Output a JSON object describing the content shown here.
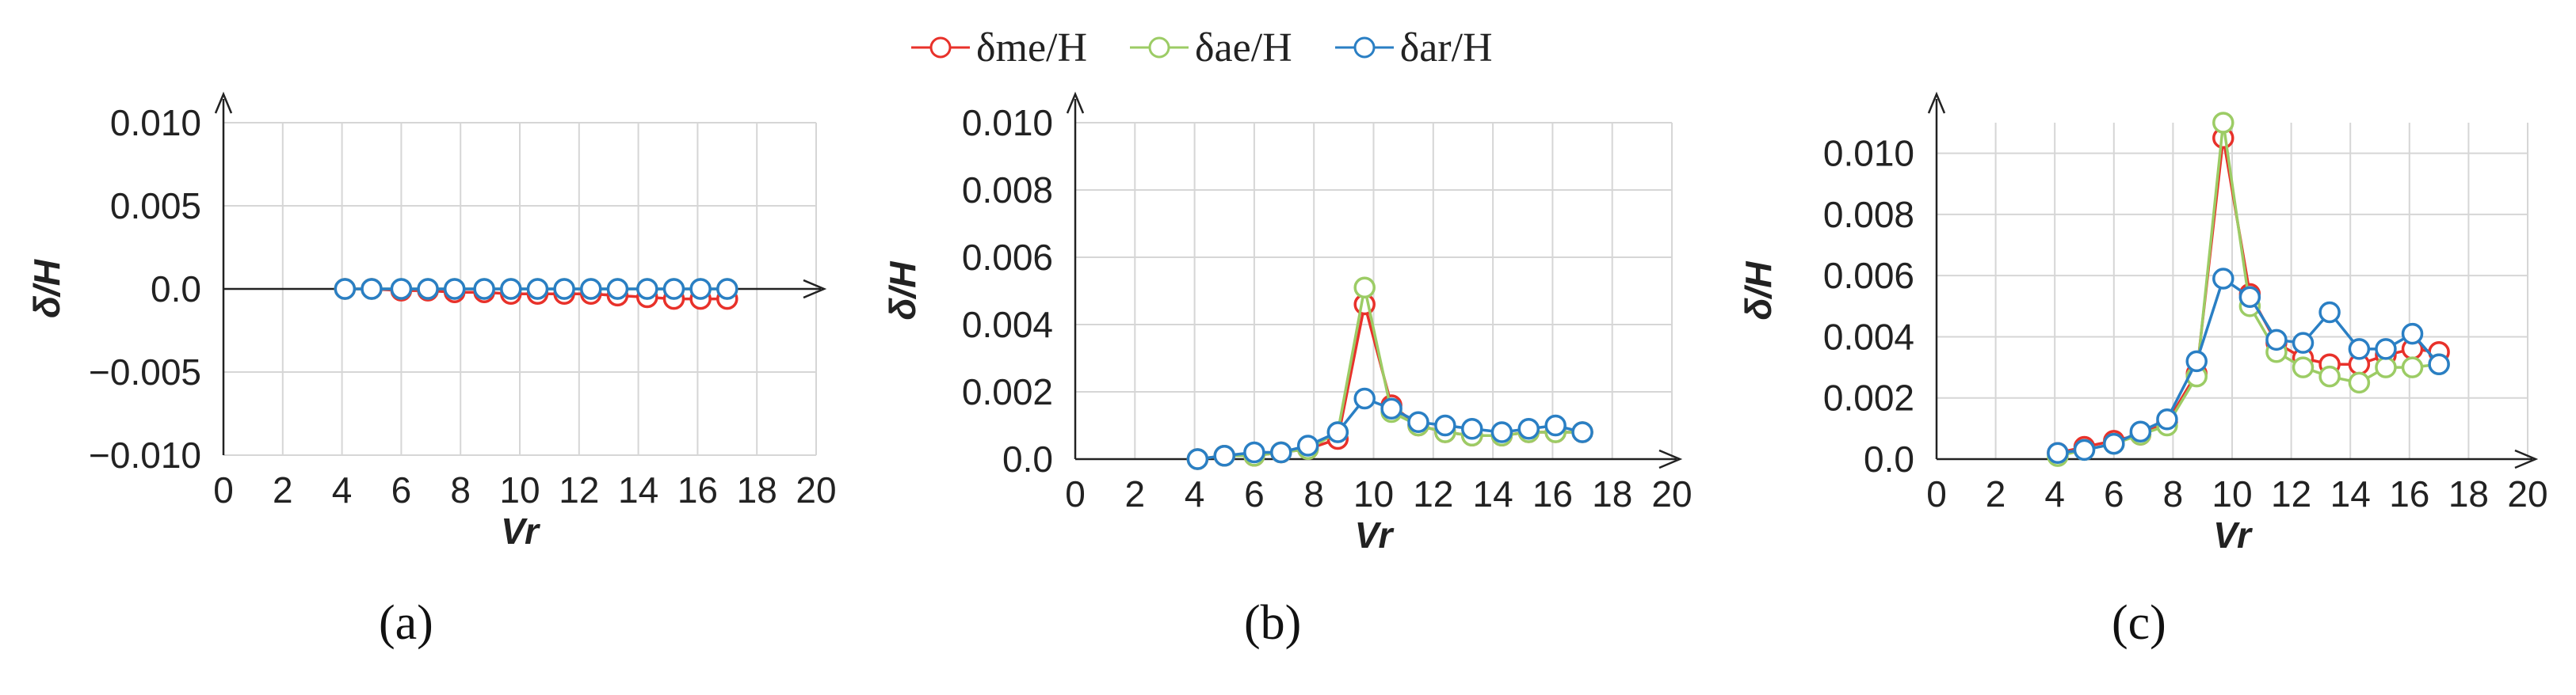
{
  "legend": [
    {
      "label": "δme/H",
      "color": "#e8312a"
    },
    {
      "label": "δae/H",
      "color": "#9ccc65"
    },
    {
      "label": "δar/H",
      "color": "#2a7fc4"
    }
  ],
  "chart_data": [
    {
      "type": "line",
      "panel_label": "(a)",
      "xlabel": "Vr",
      "ylabel": "δ/H",
      "xlim": [
        0,
        20
      ],
      "ylim": [
        -0.01,
        0.01
      ],
      "xticks": [
        0,
        2,
        4,
        6,
        8,
        10,
        12,
        14,
        16,
        18,
        20
      ],
      "xtick_labels": [
        "0",
        "2",
        "4",
        "6",
        "8",
        "10",
        "12",
        "14",
        "16",
        "18",
        "20"
      ],
      "yticks": [
        -0.01,
        -0.005,
        0.0,
        0.005,
        0.01
      ],
      "ytick_labels": [
        "−0.010",
        "−0.005",
        "0.0",
        "0.005",
        "0.010"
      ],
      "grid": true,
      "legend_position": "top",
      "x": [
        4.1,
        5.0,
        6.0,
        6.9,
        7.8,
        8.8,
        9.7,
        10.6,
        11.5,
        12.4,
        13.3,
        14.3,
        15.2,
        16.1,
        17.0
      ],
      "series": [
        {
          "name": "δme/H",
          "color": "#e8312a",
          "values": [
            0.0,
            0.0,
            -0.0001,
            -0.0001,
            -0.0002,
            -0.0002,
            -0.0003,
            -0.0003,
            -0.0003,
            -0.0003,
            -0.0004,
            -0.0005,
            -0.0006,
            -0.0006,
            -0.0006
          ]
        },
        {
          "name": "δae/H",
          "color": "#9ccc65",
          "values": [
            0.0,
            0.0,
            0.0,
            0.0,
            0.0,
            0.0,
            0.0,
            0.0,
            0.0,
            0.0,
            0.0,
            0.0,
            0.0,
            0.0,
            0.0
          ]
        },
        {
          "name": "δar/H",
          "color": "#2a7fc4",
          "values": [
            0.0,
            0.0,
            0.0,
            0.0,
            0.0,
            0.0,
            0.0,
            0.0,
            0.0,
            0.0,
            0.0,
            0.0,
            0.0,
            0.0,
            0.0
          ]
        }
      ]
    },
    {
      "type": "line",
      "panel_label": "(b)",
      "xlabel": "Vr",
      "ylabel": "δ/H",
      "xlim": [
        0,
        20
      ],
      "ylim": [
        0,
        0.01
      ],
      "xticks": [
        0,
        2,
        4,
        6,
        8,
        10,
        12,
        14,
        16,
        18,
        20
      ],
      "xtick_labels": [
        "0",
        "2",
        "4",
        "6",
        "8",
        "10",
        "12",
        "14",
        "16",
        "18",
        "20"
      ],
      "yticks": [
        0.0,
        0.002,
        0.004,
        0.006,
        0.008,
        0.01
      ],
      "ytick_labels": [
        "0.0",
        "0.002",
        "0.004",
        "0.006",
        "0.008",
        "0.010"
      ],
      "grid": true,
      "legend_position": "top",
      "x": [
        4.1,
        5.0,
        6.0,
        6.9,
        7.8,
        8.8,
        9.7,
        10.6,
        11.5,
        12.4,
        13.3,
        14.3,
        15.2,
        16.1,
        17.0
      ],
      "series": [
        {
          "name": "δme/H",
          "color": "#e8312a",
          "values": [
            0.0,
            0.0001,
            0.0001,
            0.0002,
            0.0003,
            0.0006,
            0.0046,
            0.0016,
            0.001,
            0.0008,
            0.0007,
            0.0007,
            0.0008,
            0.0008,
            0.0008
          ]
        },
        {
          "name": "δae/H",
          "color": "#9ccc65",
          "values": [
            0.0,
            0.0001,
            0.0001,
            0.0002,
            0.0003,
            0.0008,
            0.0051,
            0.0014,
            0.001,
            0.0008,
            0.0007,
            0.0007,
            0.0008,
            0.0008,
            0.0008
          ]
        },
        {
          "name": "δar/H",
          "color": "#2a7fc4",
          "values": [
            0.0,
            0.0001,
            0.0002,
            0.0002,
            0.0004,
            0.0008,
            0.0018,
            0.0015,
            0.0011,
            0.001,
            0.0009,
            0.0008,
            0.0009,
            0.001,
            0.0008
          ]
        }
      ]
    },
    {
      "type": "line",
      "panel_label": "(c)",
      "xlabel": "Vr",
      "ylabel": "δ/H",
      "xlim": [
        0,
        20
      ],
      "ylim": [
        0,
        0.011
      ],
      "xticks": [
        0,
        2,
        4,
        6,
        8,
        10,
        12,
        14,
        16,
        18,
        20
      ],
      "xtick_labels": [
        "0",
        "2",
        "4",
        "6",
        "8",
        "10",
        "12",
        "14",
        "16",
        "18",
        "20"
      ],
      "yticks": [
        0.0,
        0.002,
        0.004,
        0.006,
        0.008,
        0.01
      ],
      "ytick_labels": [
        "0.0",
        "0.002",
        "0.004",
        "0.006",
        "0.008",
        "0.010"
      ],
      "grid": true,
      "legend_position": "top",
      "x": [
        4.1,
        5.0,
        6.0,
        6.9,
        7.8,
        8.8,
        9.7,
        10.6,
        11.5,
        12.4,
        13.3,
        14.3,
        15.2,
        16.1,
        17.0
      ],
      "series": [
        {
          "name": "δme/H",
          "color": "#e8312a",
          "values": [
            0.0002,
            0.0004,
            0.0006,
            0.0008,
            0.0012,
            0.0028,
            0.0105,
            0.0054,
            0.0038,
            0.0033,
            0.0031,
            0.0031,
            0.0034,
            0.0036,
            0.0035
          ]
        },
        {
          "name": "δae/H",
          "color": "#9ccc65",
          "values": [
            0.0001,
            0.0003,
            0.0005,
            0.0008,
            0.0011,
            0.0027,
            0.011,
            0.005,
            0.0035,
            0.003,
            0.0027,
            0.0025,
            0.003,
            0.003,
            0.0031
          ]
        },
        {
          "name": "δar/H",
          "color": "#2a7fc4",
          "values": [
            0.0002,
            0.0003,
            0.0005,
            0.0009,
            0.0013,
            0.0032,
            0.0059,
            0.0053,
            0.0039,
            0.0038,
            0.0048,
            0.0036,
            0.0036,
            0.0041,
            0.0031
          ]
        }
      ]
    }
  ]
}
